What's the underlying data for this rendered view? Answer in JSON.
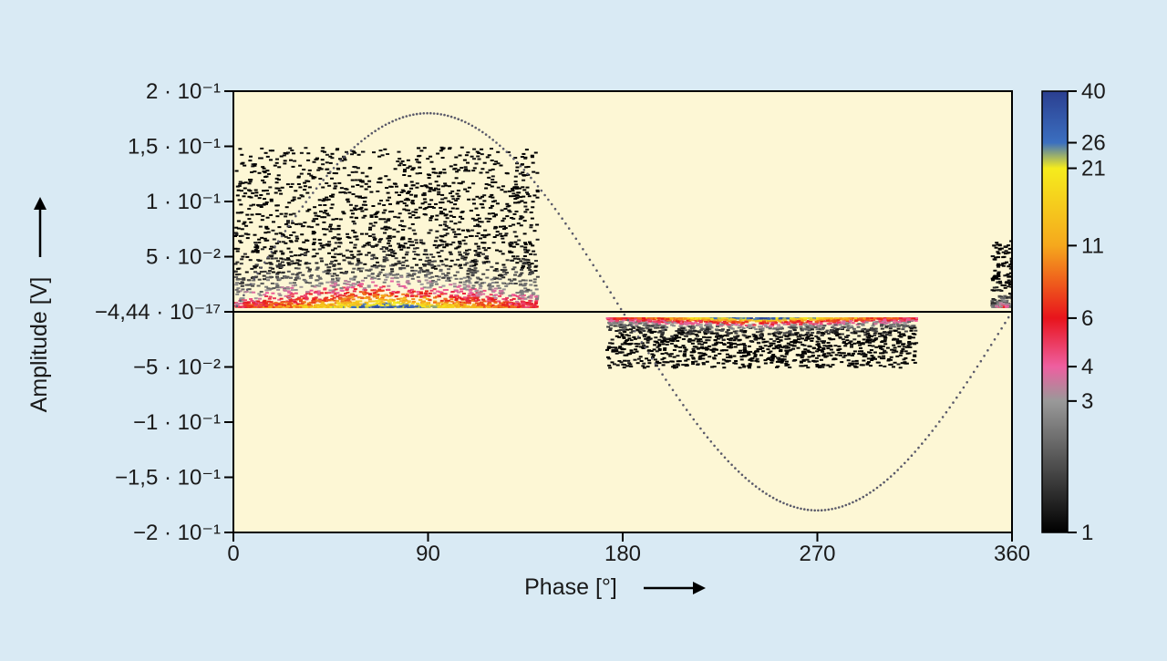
{
  "chart_data": {
    "type": "heatmap",
    "title": "",
    "xlabel": "Phase [°]",
    "ylabel": "Amplitude [V]",
    "xlim": [
      0,
      360
    ],
    "ylim": [
      -0.2,
      0.2
    ],
    "x_ticks": [
      0,
      90,
      180,
      270,
      360
    ],
    "x_tick_labels": [
      "0",
      "90",
      "180",
      "270",
      "360"
    ],
    "y_ticks": [
      0.2,
      0.15,
      0.1,
      0.05,
      0.0,
      -0.05,
      -0.1,
      -0.15,
      -0.2
    ],
    "y_tick_labels": [
      "2 · 10⁻¹",
      "1,5 · 10⁻¹",
      "1 · 10⁻¹",
      "5 · 10⁻²",
      "−4,44 · 10⁻¹⁷",
      "−5 · 10⁻²",
      "−1 · 10⁻¹",
      "−1,5 · 10⁻¹",
      "−2 · 10⁻¹"
    ],
    "zero_line": 0.0,
    "reference_sine": {
      "amplitude": 0.18,
      "period_deg": 360
    },
    "colorbar": {
      "scale": "log",
      "range": [
        1,
        40
      ],
      "ticks": [
        1,
        3,
        4,
        6,
        11,
        21,
        26,
        40
      ],
      "tick_labels": [
        "1",
        "3",
        "4",
        "6",
        "11",
        "21",
        "26",
        "40"
      ],
      "colors": [
        "#000000",
        "#999999",
        "#ee5fa0",
        "#e8141c",
        "#f5a81d",
        "#f5ec1d",
        "#3b6fc0",
        "#2b3f90"
      ]
    },
    "clusters": [
      {
        "name": "positive-half-cycle",
        "phase_range": [
          0,
          140
        ],
        "amplitude_range": [
          0.005,
          0.15
        ],
        "peak_count": 40,
        "peak_amplitude": 0.01
      },
      {
        "name": "negative-half-cycle",
        "phase_range": [
          172,
          315
        ],
        "amplitude_range": [
          -0.05,
          -0.005
        ],
        "peak_count": 40,
        "peak_amplitude": -0.01
      },
      {
        "name": "end-cluster",
        "phase_range": [
          350,
          360
        ],
        "amplitude_range": [
          0.005,
          0.065
        ],
        "peak_count": 6,
        "peak_amplitude": 0.02
      }
    ],
    "grid": false,
    "legend": "colorbar-right"
  }
}
